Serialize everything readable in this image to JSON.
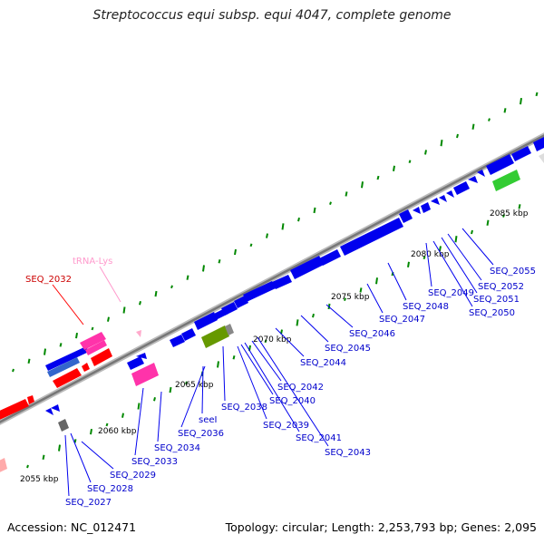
{
  "title": "Streptococcus equi subsp. equi 4047, complete genome",
  "footer": {
    "accession": "Accession: NC_012471",
    "topology": "Topology: circular; Length: 2,253,793 bp; Genes: 2,095"
  },
  "colors": {
    "cds": "#0000ee",
    "rrna": "#ff0000",
    "trna": "#ff33aa",
    "trna_label": "#ff99cc",
    "highlight_gene": "#33cc33",
    "pseudo": "#669900",
    "label_blue": "#0000cc",
    "label_red": "#cc0000",
    "gc_tick": "#008800",
    "backbone": "#888888"
  },
  "kbp_markers": [
    {
      "label": "2055 kbp"
    },
    {
      "label": "2060 kbp"
    },
    {
      "label": "2065 kbp"
    },
    {
      "label": "2070 kbp"
    },
    {
      "label": "2075 kbp"
    },
    {
      "label": "2080 kbp"
    },
    {
      "label": "2085 kbp"
    }
  ],
  "feature_labels": [
    {
      "text": "SEQ_2027",
      "kind": "cds"
    },
    {
      "text": "SEQ_2028",
      "kind": "cds"
    },
    {
      "text": "SEQ_2029",
      "kind": "cds"
    },
    {
      "text": "SEQ_2032",
      "kind": "rrna"
    },
    {
      "text": "tRNA-Lys",
      "kind": "trna"
    },
    {
      "text": "SEQ_2033",
      "kind": "cds"
    },
    {
      "text": "SEQ_2034",
      "kind": "cds"
    },
    {
      "text": "SEQ_2036",
      "kind": "cds"
    },
    {
      "text": "seeI",
      "kind": "cds"
    },
    {
      "text": "SEQ_2038",
      "kind": "cds"
    },
    {
      "text": "SEQ_2039",
      "kind": "cds"
    },
    {
      "text": "SEQ_2040",
      "kind": "cds"
    },
    {
      "text": "SEQ_2041",
      "kind": "cds"
    },
    {
      "text": "SEQ_2042",
      "kind": "cds"
    },
    {
      "text": "SEQ_2043",
      "kind": "cds"
    },
    {
      "text": "SEQ_2044",
      "kind": "cds"
    },
    {
      "text": "SEQ_2045",
      "kind": "cds"
    },
    {
      "text": "SEQ_2046",
      "kind": "cds"
    },
    {
      "text": "SEQ_2047",
      "kind": "cds"
    },
    {
      "text": "SEQ_2048",
      "kind": "cds"
    },
    {
      "text": "SEQ_2049",
      "kind": "cds"
    },
    {
      "text": "SEQ_2050",
      "kind": "cds"
    },
    {
      "text": "SEQ_2051",
      "kind": "cds"
    },
    {
      "text": "SEQ_2052",
      "kind": "cds"
    },
    {
      "text": "SEQ_2055",
      "kind": "cds"
    }
  ]
}
